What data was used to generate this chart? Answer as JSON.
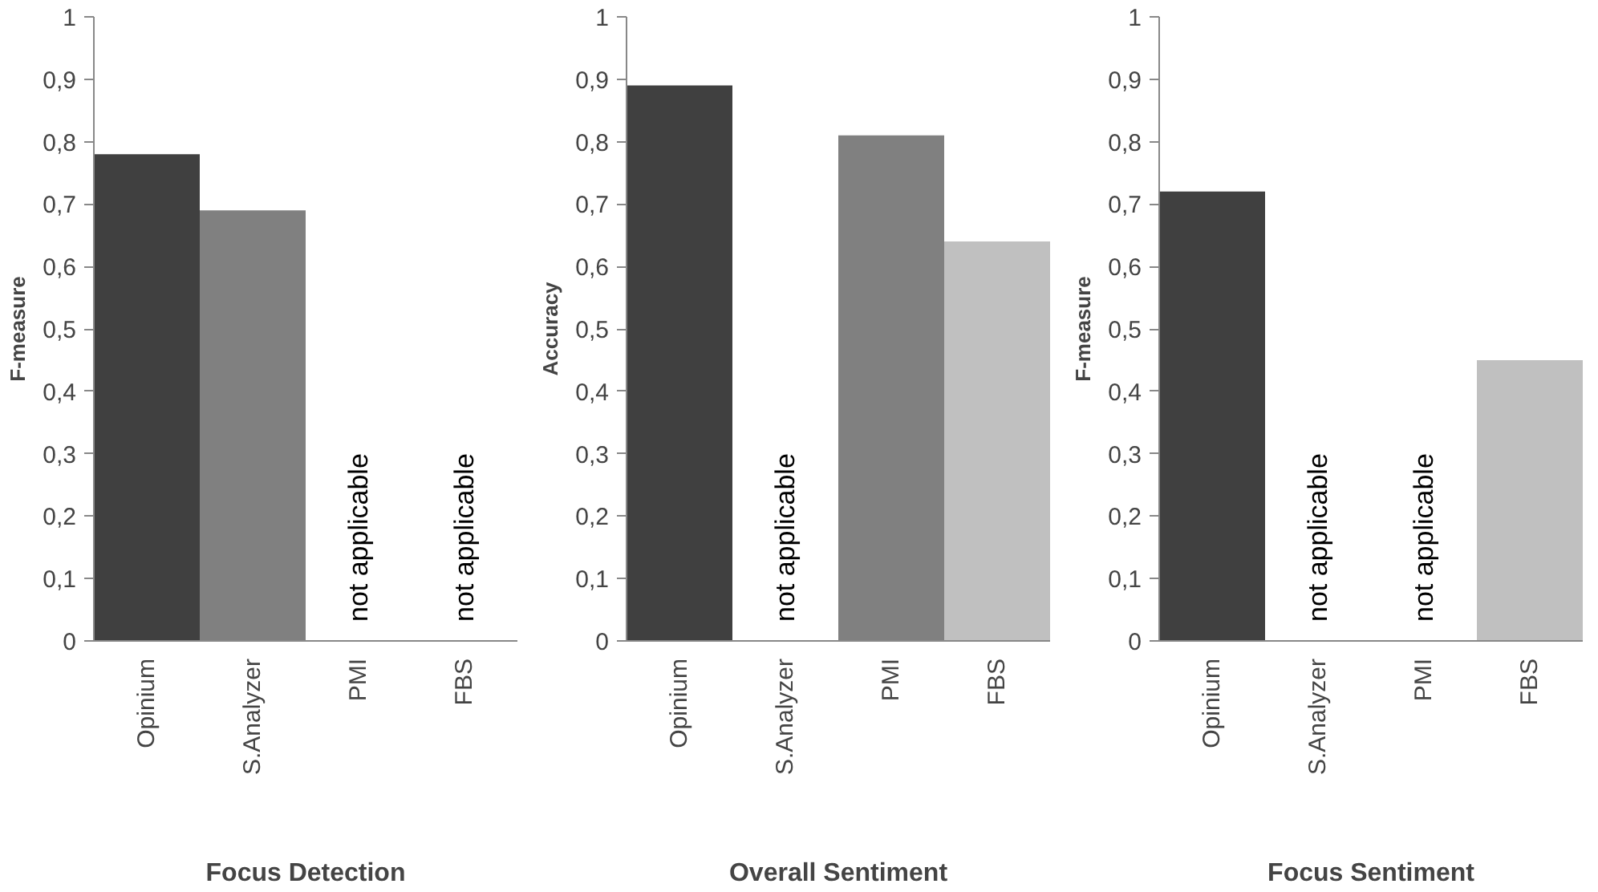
{
  "chart_data": [
    {
      "type": "bar",
      "xlabel": "Focus Detection",
      "ylabel": "F-measure",
      "categories": [
        "Opinium",
        "S.Analyzer",
        "PMI",
        "FBS"
      ],
      "values": [
        0.78,
        0.69,
        null,
        null
      ],
      "colors": [
        "#404040",
        "#808080",
        "#808080",
        "#c0c0c0"
      ],
      "ylim": [
        0,
        1
      ],
      "yticks": [
        0,
        {
          "value": 0.1,
          "label": "0,1"
        },
        {
          "value": 0.2,
          "label": "0,2"
        },
        {
          "value": 0.3,
          "label": "0,3"
        },
        {
          "value": 0.4,
          "label": "0,4"
        },
        {
          "value": 0.5,
          "label": "0,5"
        },
        {
          "value": 0.6,
          "label": "0,6"
        },
        {
          "value": 0.7,
          "label": "0,7"
        },
        {
          "value": 0.8,
          "label": "0,8"
        },
        {
          "value": 0.9,
          "label": "0,9"
        },
        1
      ],
      "grid": false,
      "annotations": [
        "not applicable",
        "not applicable"
      ]
    },
    {
      "type": "bar",
      "xlabel": "Overall Sentiment",
      "ylabel": "Accuracy",
      "categories": [
        "Opinium",
        "S.Analyzer",
        "PMI",
        "FBS"
      ],
      "values": [
        0.89,
        null,
        0.81,
        0.64
      ],
      "colors": [
        "#404040",
        "#808080",
        "#808080",
        "#c0c0c0"
      ],
      "ylim": [
        0,
        1
      ],
      "yticks": [
        0,
        {
          "value": 0.1,
          "label": "0,1"
        },
        {
          "value": 0.2,
          "label": "0,2"
        },
        {
          "value": 0.3,
          "label": "0,3"
        },
        {
          "value": 0.4,
          "label": "0,4"
        },
        {
          "value": 0.5,
          "label": "0,5"
        },
        {
          "value": 0.6,
          "label": "0,6"
        },
        {
          "value": 0.7,
          "label": "0,7"
        },
        {
          "value": 0.8,
          "label": "0,8"
        },
        {
          "value": 0.9,
          "label": "0,9"
        },
        1
      ],
      "grid": false,
      "annotations": [
        "not applicable"
      ]
    },
    {
      "type": "bar",
      "xlabel": "Focus Sentiment",
      "ylabel": "F-measure",
      "categories": [
        "Opinium",
        "S.Analyzer",
        "PMI",
        "FBS"
      ],
      "values": [
        0.72,
        null,
        null,
        0.45
      ],
      "colors": [
        "#404040",
        "#808080",
        "#808080",
        "#c0c0c0"
      ],
      "ylim": [
        0,
        1
      ],
      "yticks": [
        0,
        {
          "value": 0.1,
          "label": "0,1"
        },
        {
          "value": 0.2,
          "label": "0,2"
        },
        {
          "value": 0.3,
          "label": "0,3"
        },
        {
          "value": 0.4,
          "label": "0,4"
        },
        {
          "value": 0.5,
          "label": "0,5"
        },
        {
          "value": 0.6,
          "label": "0,6"
        },
        {
          "value": 0.7,
          "label": "0,7"
        },
        {
          "value": 0.8,
          "label": "0,8"
        },
        {
          "value": 0.9,
          "label": "0,9"
        },
        1
      ],
      "grid": false,
      "annotations": [
        "not applicable",
        "not applicable"
      ]
    }
  ]
}
